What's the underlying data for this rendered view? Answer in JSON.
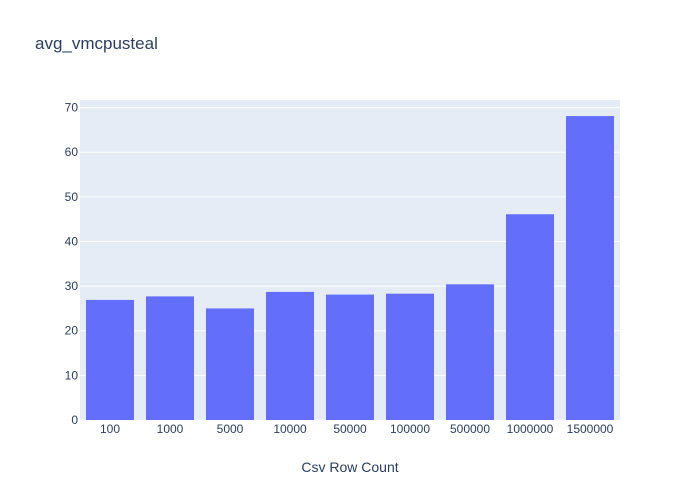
{
  "chart_data": {
    "type": "bar",
    "title": "avg_vmcpusteal",
    "xlabel": "Csv Row Count",
    "ylabel": "",
    "categories": [
      "100",
      "1000",
      "5000",
      "10000",
      "50000",
      "100000",
      "500000",
      "1000000",
      "1500000"
    ],
    "values": [
      26.9,
      27.7,
      25.0,
      28.7,
      28.1,
      28.3,
      30.4,
      46.1,
      68.1
    ],
    "ylim": [
      0,
      71.7
    ],
    "yticks": [
      0,
      10,
      20,
      30,
      40,
      50,
      60,
      70
    ],
    "grid": true,
    "legend": "none",
    "colors": {
      "bar": "#636efa",
      "plot_bg": "#e5ecf6",
      "grid": "#ffffff",
      "text": "#2a3f5f"
    }
  }
}
